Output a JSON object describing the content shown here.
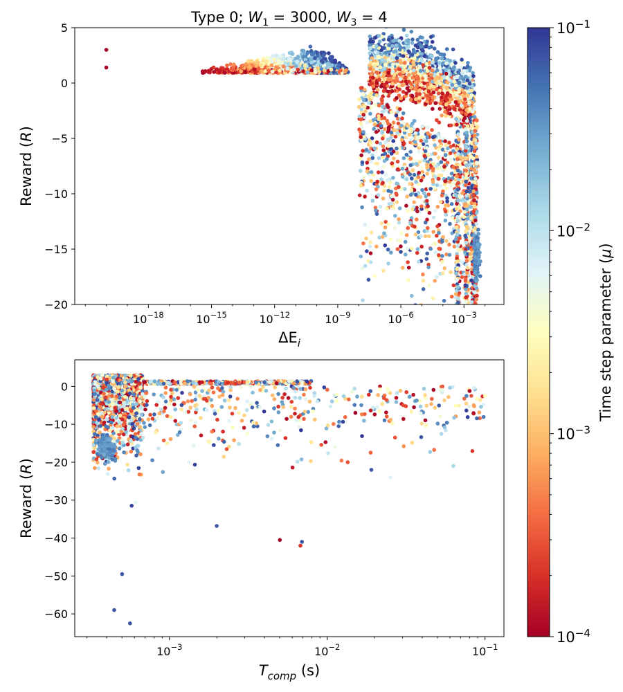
{
  "colors": {
    "colormap": [
      "#a50026",
      "#d73027",
      "#f46d43",
      "#fdae61",
      "#fee090",
      "#ffffbf",
      "#e0f3f8",
      "#abd9e9",
      "#74add1",
      "#4575b4",
      "#313695"
    ]
  },
  "chart_data": [
    {
      "type": "scatter",
      "title_parts": [
        "Type 0; ",
        "W",
        "1",
        " = 3000, ",
        "W",
        "3",
        " = 4"
      ],
      "xlabel_parts": [
        "ΔE",
        "i"
      ],
      "ylabel_parts": [
        "Reward (",
        "R",
        ")"
      ],
      "xscale": "log",
      "xlim_exp": [
        -21.5,
        -1.1
      ],
      "ylim": [
        -20,
        5
      ],
      "xticks_exp": [
        -18,
        -15,
        -12,
        -9,
        -6,
        -3
      ],
      "yticks": [
        5,
        0,
        -5,
        -10,
        -15,
        -20
      ],
      "ytick_labels": [
        "5",
        "0",
        "−5",
        "−10",
        "−15",
        "−20"
      ],
      "xtick_base": "10",
      "xtick_exp_labels": [
        "−18",
        "−15",
        "−12",
        "−9",
        "−6",
        "−3"
      ],
      "series": [
        {
          "name": "outliers",
          "points_logx": [
            [
              -20.0,
              3.0,
              -4
            ],
            [
              -20.0,
              1.4,
              -4
            ]
          ]
        },
        {
          "name": "plateau",
          "description_free": true,
          "x_range_exp": [
            -15.5,
            -8.5
          ],
          "y_range": [
            0.8,
            3.6
          ]
        },
        {
          "name": "knee",
          "x_range_exp": [
            -7.5,
            -2.5
          ],
          "y_range": [
            -20,
            3.9
          ]
        },
        {
          "name": "cluster",
          "center_logx": -2.4,
          "center_y": -15.5
        }
      ]
    },
    {
      "type": "scatter",
      "xlabel_parts": [
        "T",
        "comp",
        " (s)"
      ],
      "ylabel_parts": [
        "Reward (",
        "R",
        ")"
      ],
      "xscale": "log",
      "xlim_exp": [
        -3.6,
        -0.88
      ],
      "ylim": [
        -66,
        7
      ],
      "xticks_exp": [
        -3,
        -2,
        -1
      ],
      "yticks": [
        0,
        -10,
        -20,
        -30,
        -40,
        -50,
        -60
      ],
      "ytick_labels": [
        "0",
        "−10",
        "−20",
        "−30",
        "−40",
        "−50",
        "−60"
      ],
      "xtick_base": "10",
      "xtick_exp_labels": [
        "−3",
        "−2",
        "−1"
      ],
      "series": [
        {
          "name": "dense-left",
          "x_range": [
            0.0003,
            0.0007
          ],
          "y_range": [
            -63,
            3.5
          ]
        },
        {
          "name": "band",
          "x_range": [
            0.0005,
            0.007
          ],
          "y_range": [
            0.5,
            1.5
          ]
        },
        {
          "name": "scatter",
          "x_range": [
            0.0007,
            0.1
          ],
          "y_range": [
            -42,
            0
          ]
        }
      ]
    }
  ],
  "colorbar": {
    "label_parts": [
      "Time step parameter (",
      "μ",
      ")"
    ],
    "scale": "log",
    "range_exp": [
      -4,
      -1
    ],
    "ticks_exp": [
      -4,
      -3,
      -2,
      -1
    ],
    "tick_base": "10",
    "tick_exp_labels": [
      "−4",
      "−3",
      "−2",
      "−1"
    ]
  }
}
